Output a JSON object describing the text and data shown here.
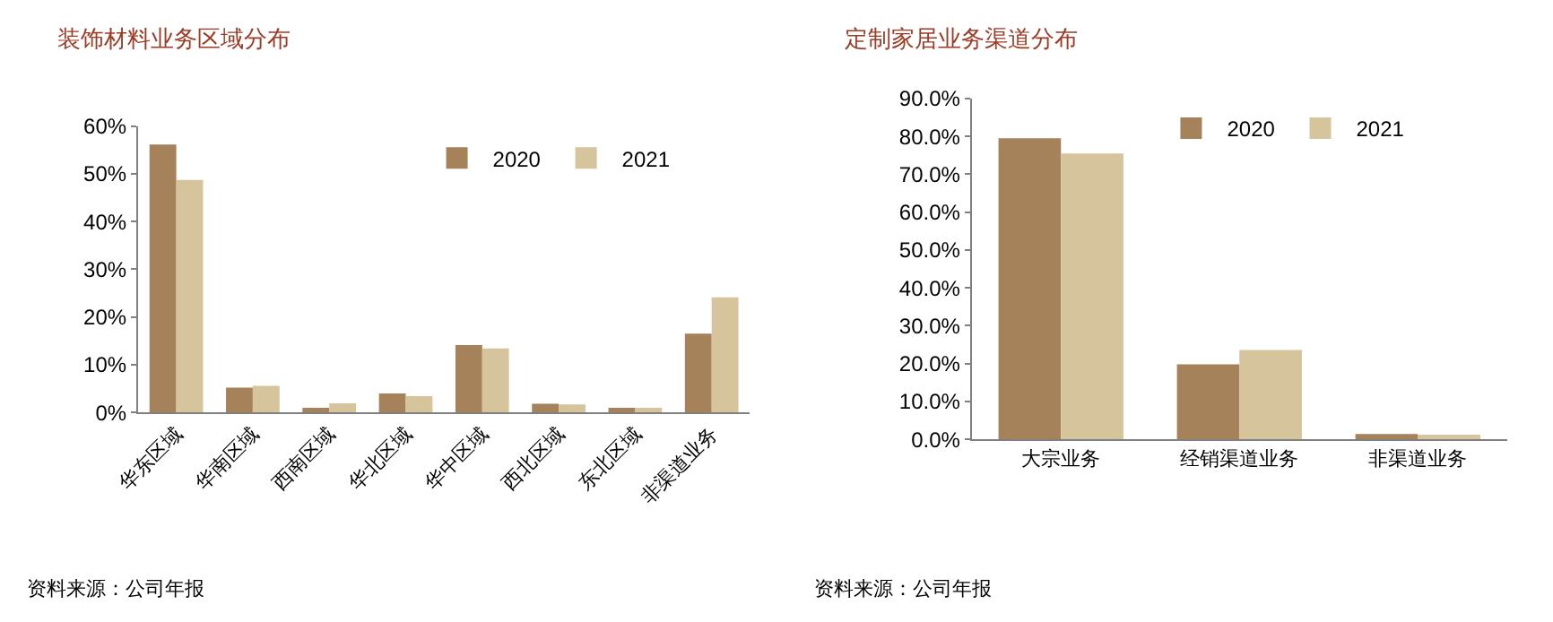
{
  "chart_data": [
    {
      "type": "bar",
      "title": "装饰材料业务区域分布",
      "categories": [
        "华东区域",
        "华南区域",
        "西南区域",
        "华北区域",
        "华中区域",
        "西北区域",
        "东北区域",
        "非渠道业务"
      ],
      "series": [
        {
          "name": "2020",
          "color": "#a5825a",
          "values": [
            56.1,
            5.2,
            1.0,
            4.0,
            14.1,
            1.8,
            1.0,
            16.5
          ]
        },
        {
          "name": "2021",
          "color": "#d6c49c",
          "values": [
            48.7,
            5.6,
            1.9,
            3.4,
            13.4,
            1.7,
            1.0,
            24.1
          ]
        }
      ],
      "ylim": [
        0,
        60
      ],
      "yticks": [
        {
          "value": 0,
          "label": "0%"
        },
        {
          "value": 10,
          "label": "10%"
        },
        {
          "value": 20,
          "label": "20%"
        },
        {
          "value": 30,
          "label": "30%"
        },
        {
          "value": 40,
          "label": "40%"
        },
        {
          "value": 50,
          "label": "50%"
        },
        {
          "value": 60,
          "label": "60%"
        }
      ],
      "legend": "top right",
      "annotations": [
        "资料来源：公司年报"
      ]
    },
    {
      "type": "bar",
      "title": "定制家居业务渠道分布",
      "categories": [
        "大宗业务",
        "经销渠道业务",
        "非渠道业务"
      ],
      "series": [
        {
          "name": "2020",
          "color": "#a5825a",
          "values": [
            79.5,
            19.8,
            1.4
          ]
        },
        {
          "name": "2021",
          "color": "#d6c49c",
          "values": [
            75.5,
            23.6,
            1.2
          ]
        }
      ],
      "ylim": [
        0,
        90
      ],
      "yticks": [
        {
          "value": 0,
          "label": "0.0%"
        },
        {
          "value": 10,
          "label": "10.0%"
        },
        {
          "value": 20,
          "label": "20.0%"
        },
        {
          "value": 30,
          "label": "30.0%"
        },
        {
          "value": 40,
          "label": "40.0%"
        },
        {
          "value": 50,
          "label": "50.0%"
        },
        {
          "value": 60,
          "label": "60.0%"
        },
        {
          "value": 70,
          "label": "70.0%"
        },
        {
          "value": 80,
          "label": "80.0%"
        },
        {
          "value": 90,
          "label": "90.0%"
        }
      ],
      "legend": "top right",
      "annotations": [
        "资料来源：公司年报"
      ]
    }
  ]
}
